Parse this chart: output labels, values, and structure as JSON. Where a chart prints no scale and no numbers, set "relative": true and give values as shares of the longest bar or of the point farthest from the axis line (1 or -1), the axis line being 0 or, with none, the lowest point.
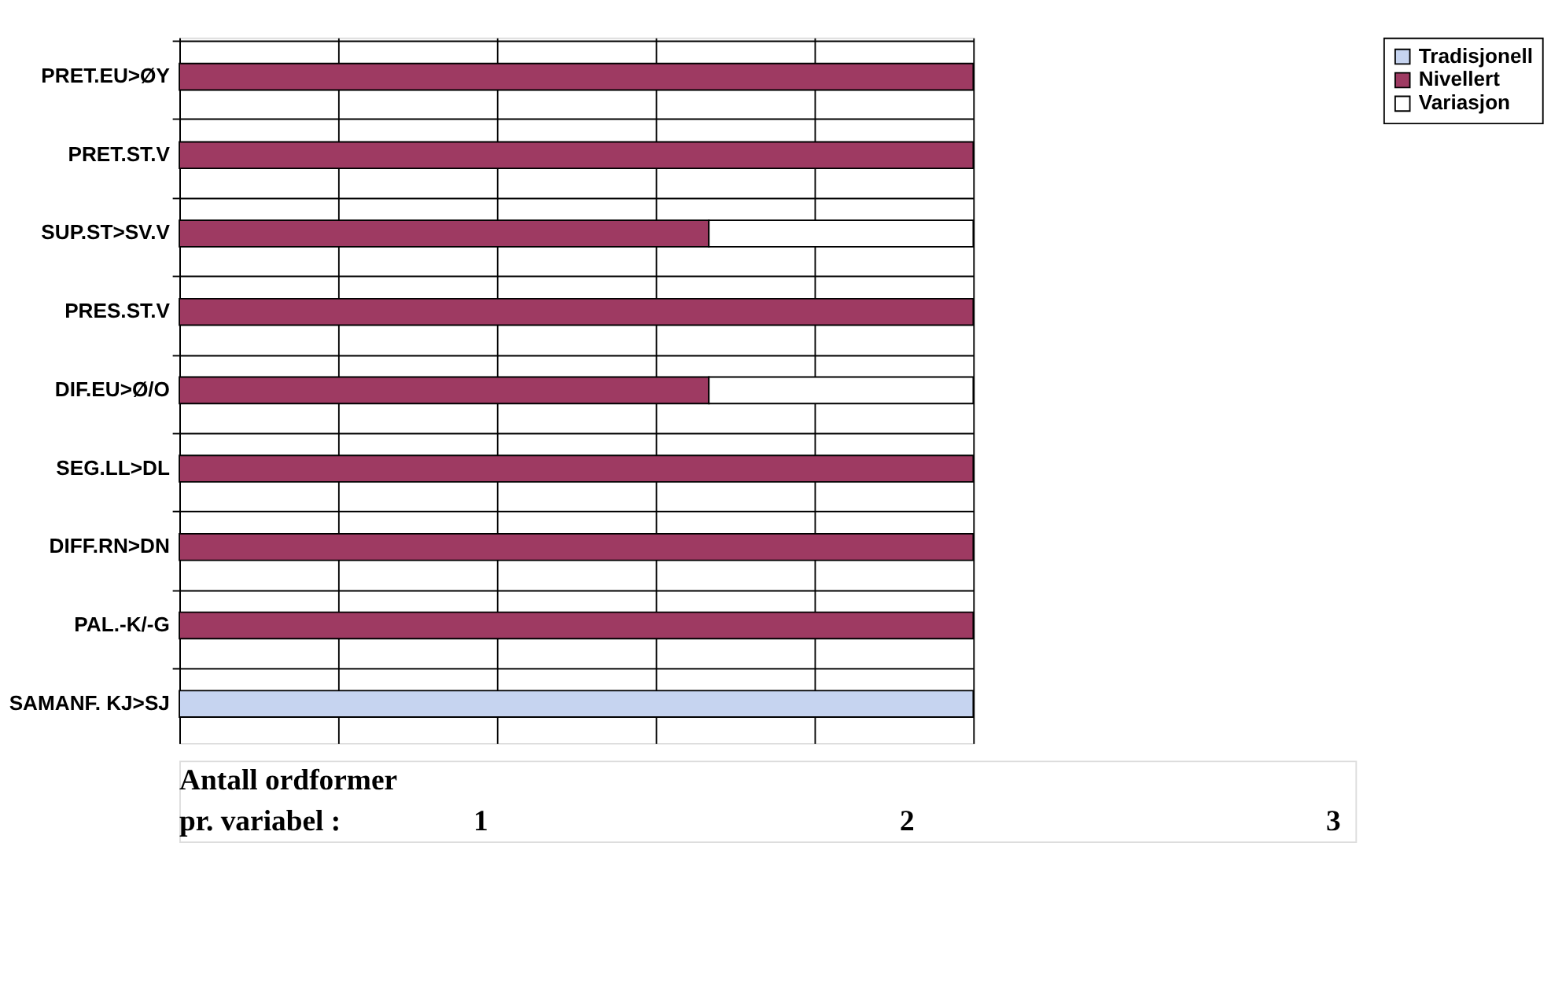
{
  "chart_data": {
    "type": "bar",
    "orientation": "horizontal",
    "stacked": true,
    "relative": true,
    "grid": true,
    "legend": "right",
    "categories": [
      "PRET.EU>ØY",
      "PRET.ST.V",
      "SUP.ST>SV.V",
      "PRES.ST.V",
      "DIF.EU>Ø/O",
      "SEG.LL>DL",
      "DIFF.RN>DN",
      "PAL.-K/-G",
      "SAMANF. KJ>SJ"
    ],
    "series": [
      {
        "name": "Tradisjonell",
        "color": "#c6d4f0",
        "values": [
          null,
          null,
          null,
          null,
          null,
          null,
          null,
          null,
          1
        ]
      },
      {
        "name": "Nivellert",
        "color": "#9e3a62",
        "values": [
          1,
          1,
          0.667,
          1,
          0.667,
          1,
          1,
          1,
          null
        ]
      },
      {
        "name": "Variasjon",
        "color": "#ffffff",
        "values": [
          null,
          null,
          0.333,
          null,
          0.333,
          null,
          null,
          null,
          null
        ]
      }
    ],
    "annotations": [
      "Antall ordformer",
      "pr. variabel :",
      "1",
      "2",
      "3"
    ]
  }
}
